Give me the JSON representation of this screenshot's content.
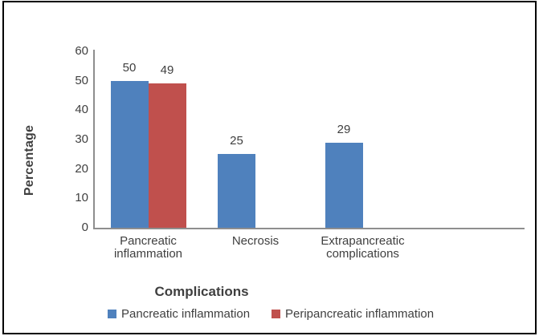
{
  "chart_data": {
    "type": "bar",
    "xlabel": "Complications",
    "ylabel": "Percentage",
    "ylim": [
      0,
      60
    ],
    "yticks": [
      0,
      10,
      20,
      30,
      40,
      50,
      60
    ],
    "categories": [
      "Pancreatic inflammation",
      "Necrosis",
      "Extrapancreatic complications"
    ],
    "series": [
      {
        "name": "Pancreatic inflammation",
        "color": "#4F81BD",
        "values": [
          50,
          25,
          29
        ]
      },
      {
        "name": "Peripancreatic inflammation",
        "color": "#C0504D",
        "values": [
          49,
          null,
          null
        ]
      }
    ],
    "data_labels_shown": true,
    "grid": false,
    "legend_position": "bottom"
  },
  "colors": {
    "series1": "#4F81BD",
    "series2": "#C0504D",
    "axis_line": "#8E8E8E",
    "text": "#3F3F3F",
    "border": "#000000",
    "background": "#FFFFFF"
  }
}
